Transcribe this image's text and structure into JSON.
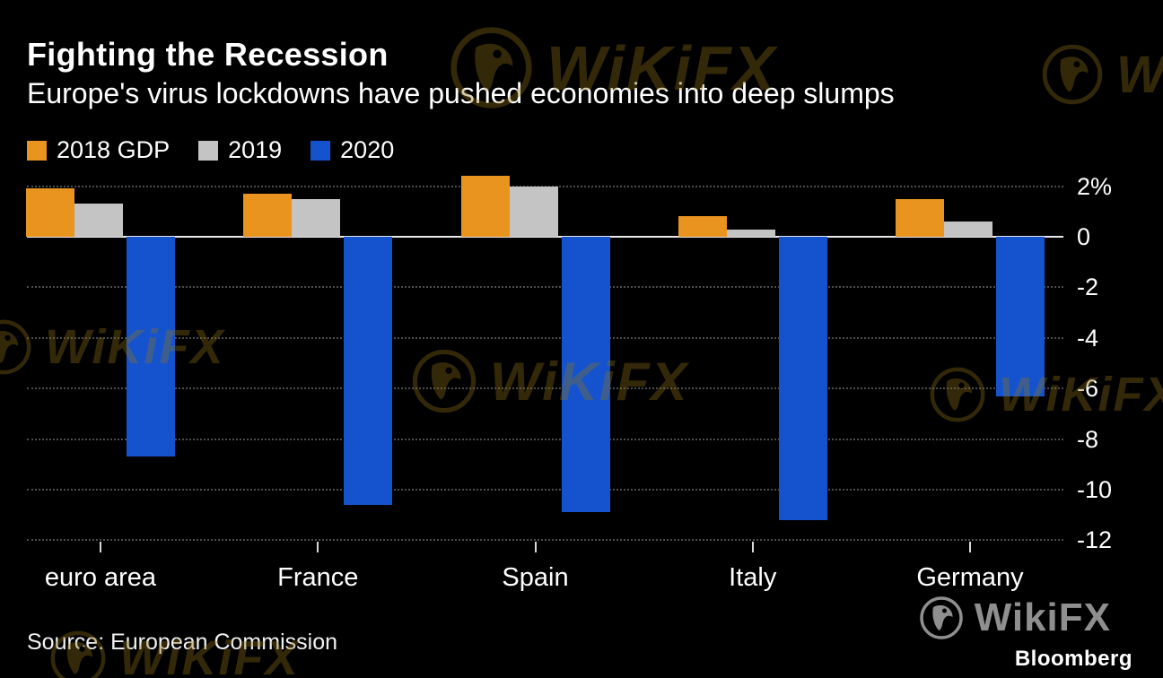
{
  "header": {
    "title": "Fighting the Recession",
    "subtitle": "Europe's virus lockdowns have pushed economies into deep slumps"
  },
  "legend": {
    "items": [
      {
        "label": "2018 GDP",
        "color": "#E8941F"
      },
      {
        "label": "2019",
        "color": "#C4C4C4"
      },
      {
        "label": "2020",
        "color": "#1553CE"
      }
    ]
  },
  "chart_data": {
    "type": "bar",
    "title": "Fighting the Recession",
    "subtitle": "Europe's virus lockdowns have pushed economies into deep slumps",
    "categories": [
      "euro area",
      "France",
      "Spain",
      "Italy",
      "Germany"
    ],
    "series": [
      {
        "name": "2018 GDP",
        "color": "#E8941F",
        "values": [
          1.9,
          1.7,
          2.4,
          0.8,
          1.5
        ]
      },
      {
        "name": "2019",
        "color": "#C4C4C4",
        "values": [
          1.3,
          1.5,
          2.0,
          0.3,
          0.6
        ]
      },
      {
        "name": "2020",
        "color": "#1553CE",
        "values": [
          -8.7,
          -10.6,
          -10.9,
          -11.2,
          -6.3
        ]
      }
    ],
    "xlabel": "",
    "ylabel": "",
    "unit": "%",
    "ylim": [
      -12.6,
      2.6
    ],
    "yticks": [
      {
        "value": 2,
        "label": "2%"
      },
      {
        "value": 0,
        "label": "0"
      },
      {
        "value": -2,
        "label": "-2"
      },
      {
        "value": -4,
        "label": "-4"
      },
      {
        "value": -6,
        "label": "-6"
      },
      {
        "value": -8,
        "label": "-8"
      },
      {
        "value": -10,
        "label": "-10"
      },
      {
        "value": -12,
        "label": "-12"
      }
    ],
    "grid": "dotted-horizontal",
    "legend_position": "top-left"
  },
  "footer": {
    "source": "Source: European Commission",
    "brand": "Bloomberg"
  },
  "watermark": {
    "text": "WiKiFX"
  },
  "logo": {
    "text": "WikiFX"
  }
}
